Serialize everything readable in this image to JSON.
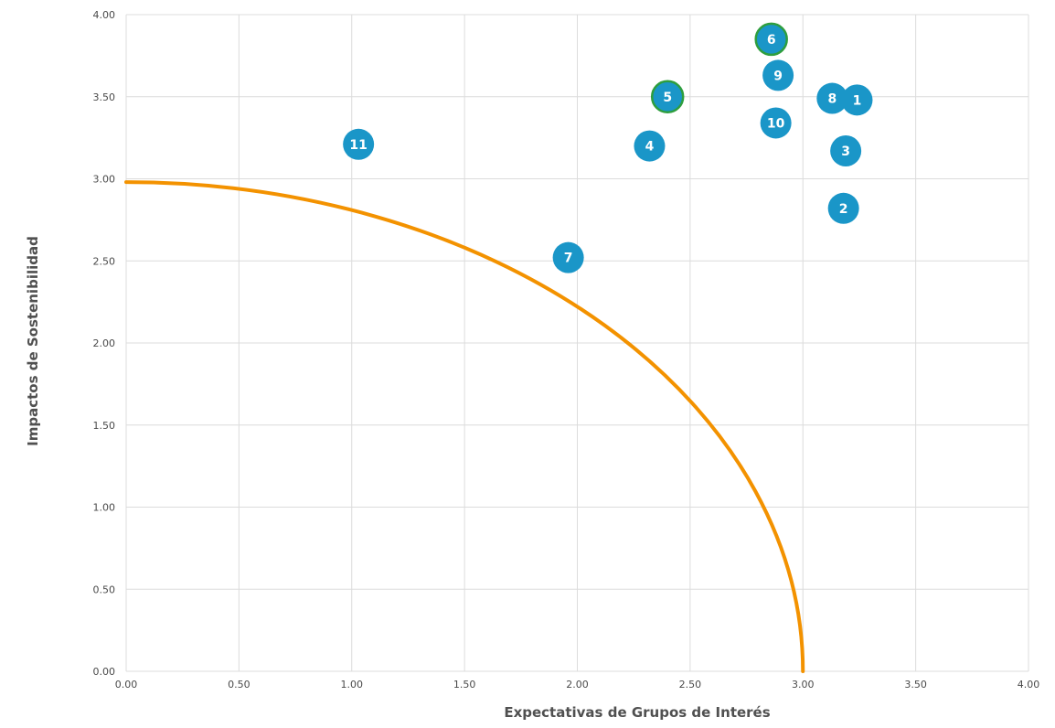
{
  "chart_data": {
    "type": "scatter",
    "xlabel": "Expectativas de Grupos de Interés",
    "ylabel": "Impactos de Sostenibilidad",
    "xlim": [
      0,
      4
    ],
    "ylim": [
      0,
      4
    ],
    "x_ticks": [
      "0.00",
      "0.50",
      "1.00",
      "1.50",
      "2.00",
      "2.50",
      "3.00",
      "3.50",
      "4.00"
    ],
    "y_ticks": [
      "0.00",
      "0.50",
      "1.00",
      "1.50",
      "2.00",
      "2.50",
      "3.00",
      "3.50",
      "4.00"
    ],
    "grid": true,
    "points": [
      {
        "label": "1",
        "x": 3.24,
        "y": 3.48
      },
      {
        "label": "2",
        "x": 3.18,
        "y": 2.82
      },
      {
        "label": "3",
        "x": 3.19,
        "y": 3.17
      },
      {
        "label": "4",
        "x": 2.32,
        "y": 3.2
      },
      {
        "label": "5",
        "x": 2.4,
        "y": 3.5,
        "outline": true
      },
      {
        "label": "6",
        "x": 2.86,
        "y": 3.85,
        "outline": true
      },
      {
        "label": "7",
        "x": 1.96,
        "y": 2.52
      },
      {
        "label": "8",
        "x": 3.13,
        "y": 3.49
      },
      {
        "label": "9",
        "x": 2.89,
        "y": 3.63
      },
      {
        "label": "10",
        "x": 2.88,
        "y": 3.34
      },
      {
        "label": "11",
        "x": 1.03,
        "y": 3.21
      }
    ],
    "threshold_curve": {
      "type": "quarter-ellipse",
      "x_intercept": 3.0,
      "y_intercept": 2.98,
      "color": "#f39200"
    },
    "colors": {
      "bubble": "#1a96c8",
      "bubble_outline": "#2e9e3e",
      "label": "#ffffff",
      "grid": "#dcdcdc"
    }
  }
}
